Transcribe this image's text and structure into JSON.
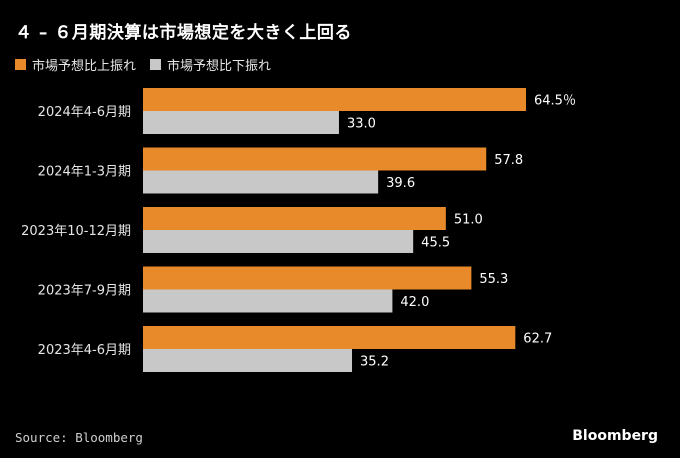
{
  "title": "４ – ６月期決算は市場想定を大きく上回る",
  "legend": [
    {
      "label": "市場予想比上振れ",
      "color": "#E8892A"
    },
    {
      "label": "市場予想比下振れ",
      "color": "#C8C8C8"
    }
  ],
  "source": "Source: Bloomberg",
  "logo": "Bloomberg",
  "chart_data": {
    "type": "bar",
    "orientation": "horizontal",
    "categories": [
      "2024年4-6月期",
      "2024年1-3月期",
      "2023年10-12月期",
      "2023年7-9月期",
      "2023年4-6月期"
    ],
    "series": [
      {
        "name": "市場予想比上振れ",
        "color": "#E8892A",
        "values": [
          64.5,
          57.8,
          51.0,
          55.3,
          62.7
        ]
      },
      {
        "name": "市場予想比下振れ",
        "color": "#C8C8C8",
        "values": [
          33.0,
          39.6,
          45.5,
          42.0,
          35.2
        ]
      }
    ],
    "unit_suffix": "％",
    "xlim": [
      0,
      66
    ]
  }
}
